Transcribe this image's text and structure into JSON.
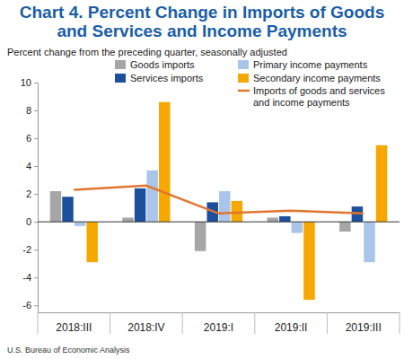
{
  "chart_data": {
    "type": "bar",
    "title": "Chart 4. Percent Change in Imports of Goods and Services and Income Payments",
    "subtitle": "Percent change from the preceding quarter, seasonally adjusted",
    "source": "U.S. Bureau of Economic Analysis",
    "categories": [
      "2018:III",
      "2018:IV",
      "2019:I",
      "2019:II",
      "2019:III"
    ],
    "series": [
      {
        "name": "Goods imports",
        "type": "bar",
        "color": "#a6a6a6",
        "values": [
          2.2,
          0.3,
          -2.1,
          0.3,
          -0.7
        ]
      },
      {
        "name": "Services imports",
        "type": "bar",
        "color": "#1c4f9c",
        "values": [
          1.8,
          2.4,
          1.4,
          0.4,
          1.1
        ]
      },
      {
        "name": "Primary income payments",
        "type": "bar",
        "color": "#a9c6ea",
        "values": [
          -0.3,
          3.7,
          2.2,
          -0.8,
          -2.9
        ]
      },
      {
        "name": "Secondary income payments",
        "type": "bar",
        "color": "#f5a800",
        "values": [
          -2.9,
          8.6,
          1.5,
          -5.6,
          5.5
        ]
      },
      {
        "name": "Imports of goods and services and income payments",
        "type": "line",
        "color": "#e0762f",
        "values": [
          2.3,
          2.6,
          0.6,
          0.8,
          0.6
        ]
      }
    ],
    "ylim": [
      -6.5,
      10
    ],
    "yticks": [
      -6,
      -4,
      -2,
      0,
      2,
      4,
      6,
      8,
      10
    ],
    "grid": false,
    "legend": "top"
  }
}
